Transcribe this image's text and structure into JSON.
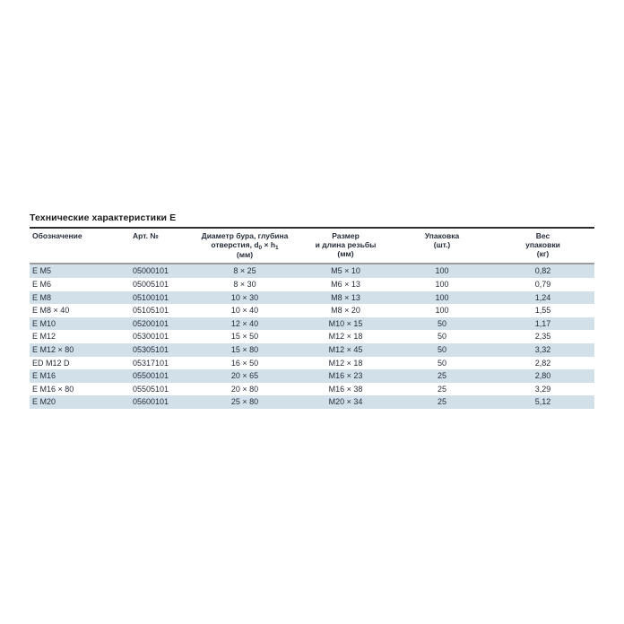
{
  "title": "Технические характеристики Е",
  "colors": {
    "row_alt": "#d2e0ea",
    "header_rule": "#9c9c9c",
    "title_rule": "#2e2e2e",
    "text": "#262d3a",
    "title_text": "#1b1b1b"
  },
  "table": {
    "headers": {
      "designation": "Обозначение",
      "article": "Арт. №",
      "drill": {
        "line1": "Диаметр бура, глубина",
        "line2_pre": "отверстия, d",
        "line2_sub0": "0",
        "line2_mid": " × h",
        "line2_sub1": "1",
        "line3": "(мм)"
      },
      "thread": {
        "line1": "Размер",
        "line2": "и длина резьбы",
        "line3": "(мм)"
      },
      "pack": {
        "line1": "Упаковка",
        "line2": "(шт.)"
      },
      "weight": {
        "line1": "Вес",
        "line2": "упаковки",
        "line3": "(кг)"
      }
    },
    "rows": [
      {
        "designation": "E M5",
        "article": "05000101",
        "drill": "8 × 25",
        "thread": "M5 × 10",
        "pack": "100",
        "weight": "0,82"
      },
      {
        "designation": "E M6",
        "article": "05005101",
        "drill": "8 × 30",
        "thread": "M6 × 13",
        "pack": "100",
        "weight": "0,79"
      },
      {
        "designation": "E M8",
        "article": "05100101",
        "drill": "10 × 30",
        "thread": "M8 × 13",
        "pack": "100",
        "weight": "1,24"
      },
      {
        "designation": "E M8 × 40",
        "article": "05105101",
        "drill": "10 × 40",
        "thread": "M8 × 20",
        "pack": "100",
        "weight": "1,55"
      },
      {
        "designation": "E M10",
        "article": "05200101",
        "drill": "12 × 40",
        "thread": "M10 × 15",
        "pack": "50",
        "weight": "1,17"
      },
      {
        "designation": "E M12",
        "article": "05300101",
        "drill": "15 × 50",
        "thread": "M12 × 18",
        "pack": "50",
        "weight": "2,35"
      },
      {
        "designation": "E M12 × 80",
        "article": "05305101",
        "drill": "15 × 80",
        "thread": "M12 × 45",
        "pack": "50",
        "weight": "3,32"
      },
      {
        "designation": "ED M12 D",
        "article": "05317101",
        "drill": "16 × 50",
        "thread": "M12 × 18",
        "pack": "50",
        "weight": "2,82"
      },
      {
        "designation": "E M16",
        "article": "05500101",
        "drill": "20 × 65",
        "thread": "M16 × 23",
        "pack": "25",
        "weight": "2,80"
      },
      {
        "designation": "E M16 × 80",
        "article": "05505101",
        "drill": "20 × 80",
        "thread": "M16 × 38",
        "pack": "25",
        "weight": "3,29"
      },
      {
        "designation": "E M20",
        "article": "05600101",
        "drill": "25 × 80",
        "thread": "M20 × 34",
        "pack": "25",
        "weight": "5,12"
      }
    ]
  }
}
